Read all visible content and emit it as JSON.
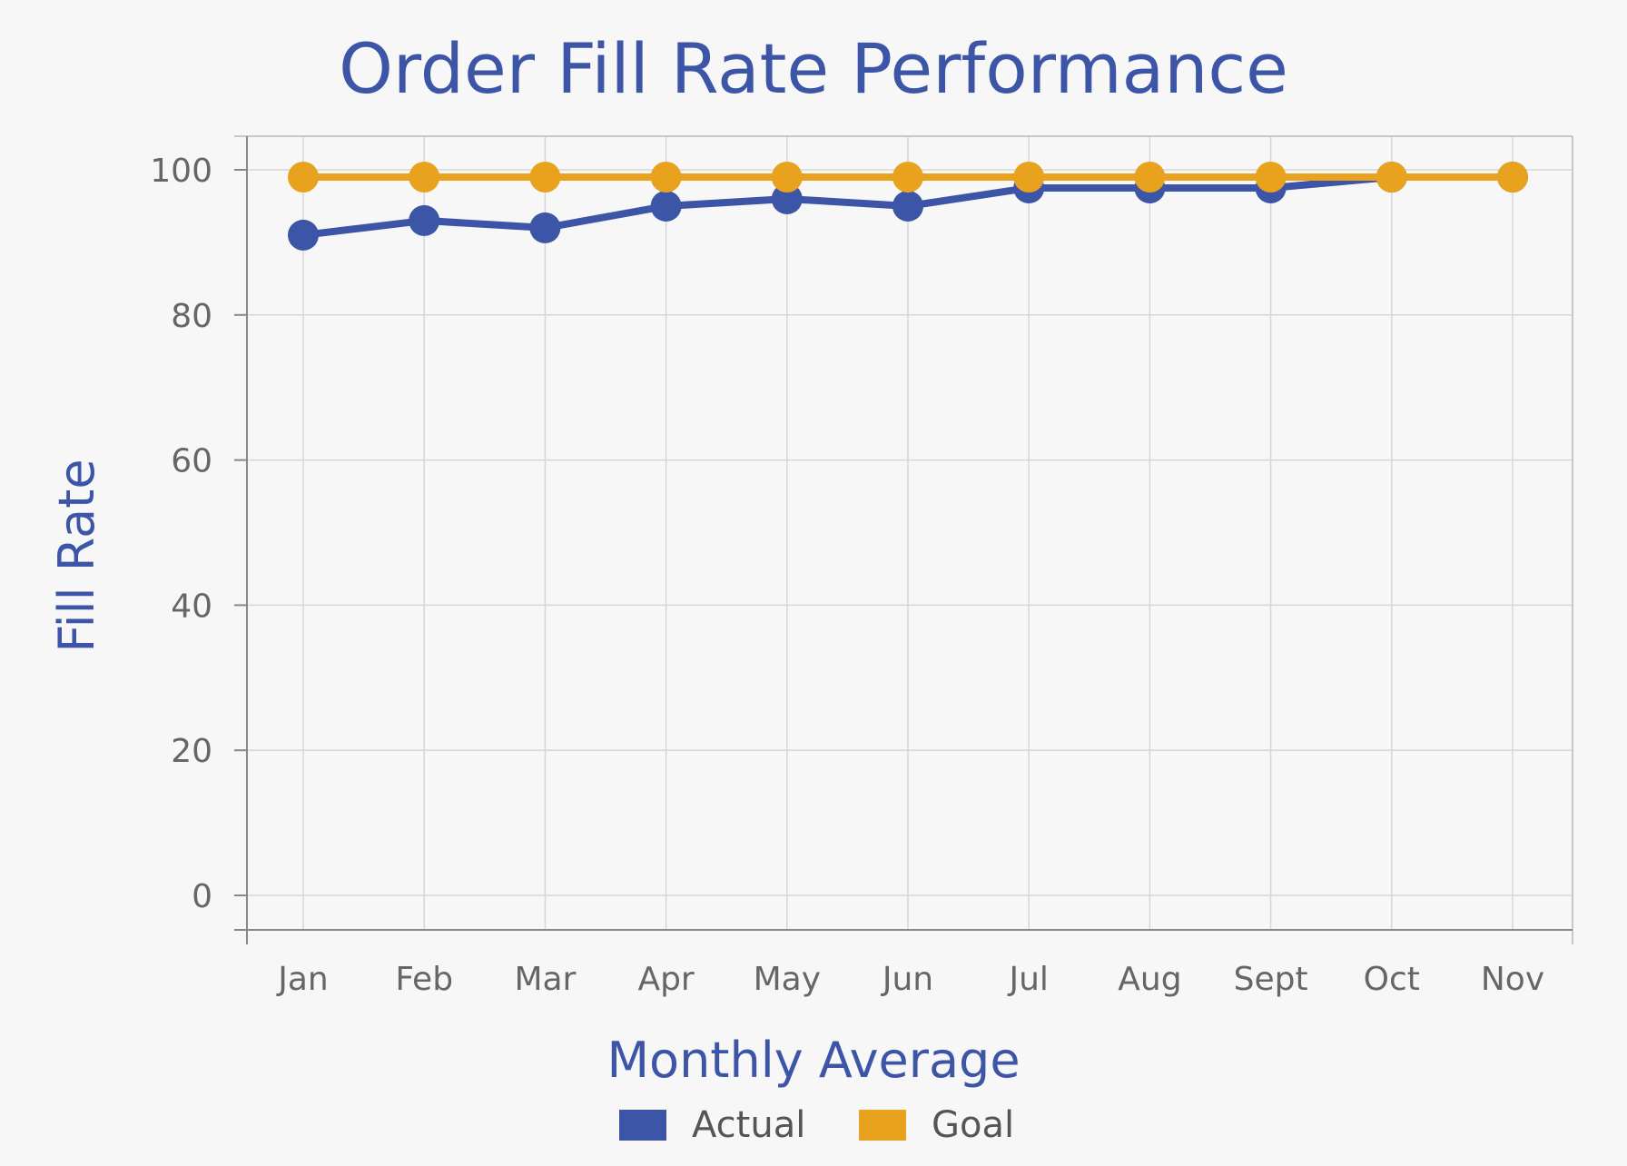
{
  "chart_data": {
    "type": "line",
    "title": "Order Fill Rate Performance",
    "xlabel": "Monthly Average",
    "ylabel": "Fill Rate",
    "categories": [
      "Jan",
      "Feb",
      "Mar",
      "Apr",
      "May",
      "Jun",
      "Jul",
      "Aug",
      "Sept",
      "Oct",
      "Nov"
    ],
    "y_ticks": [
      "0",
      "20",
      "40",
      "60",
      "80",
      "100"
    ],
    "ylim": [
      -5,
      105
    ],
    "grid": true,
    "legend_position": "bottom",
    "series": [
      {
        "name": "Actual",
        "color": "#3d55a6",
        "values": [
          91,
          93,
          92,
          95,
          96,
          95,
          97.5,
          97.5,
          97.5,
          99,
          99
        ]
      },
      {
        "name": "Goal",
        "color": "#e8a21e",
        "values": [
          99,
          99,
          99,
          99,
          99,
          99,
          99,
          99,
          99,
          99,
          99
        ]
      }
    ]
  }
}
